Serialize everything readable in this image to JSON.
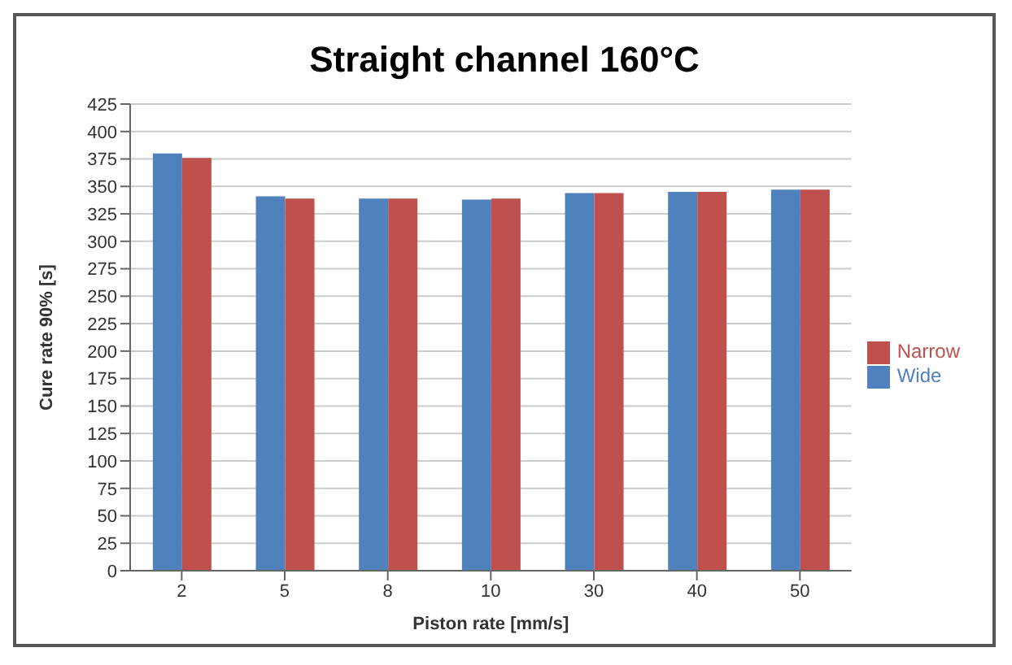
{
  "chart_data": {
    "type": "bar",
    "title": "Straight channel 160°C",
    "xlabel": "Piston rate [mm/s]",
    "ylabel": "Cure rate 90% [s]",
    "categories": [
      "2",
      "5",
      "8",
      "10",
      "30",
      "40",
      "50"
    ],
    "series": [
      {
        "name": "Wide",
        "color": "#4f81bd",
        "values": [
          380,
          341,
          339,
          338,
          344,
          345,
          347
        ]
      },
      {
        "name": "Narrow",
        "color": "#c0504d",
        "values": [
          376,
          339,
          339,
          339,
          344,
          345,
          347
        ]
      }
    ],
    "ylim": [
      0,
      425
    ],
    "yticks": [
      0,
      25,
      50,
      75,
      100,
      125,
      150,
      175,
      200,
      225,
      250,
      275,
      300,
      325,
      350,
      375,
      400,
      425
    ],
    "grid": "y",
    "legend": "right"
  }
}
